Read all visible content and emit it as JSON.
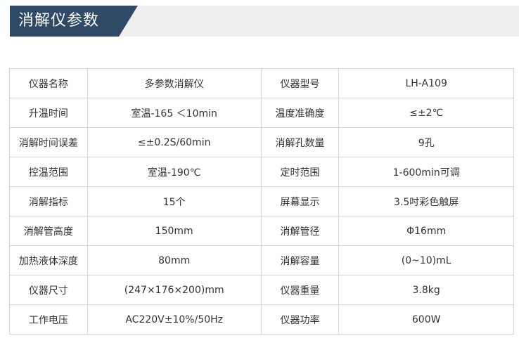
{
  "header": {
    "title": "消解仪参数",
    "accent_color": "#2e4a66",
    "band_color": "#efefef"
  },
  "specs": [
    {
      "label1": "仪器名称",
      "value1": "多参数消解仪",
      "label2": "仪器型号",
      "value2": "LH-A109"
    },
    {
      "label1": "升温时间",
      "value1": "室温-165 ＜10min",
      "label2": "温度准确度",
      "value2": "≤±2℃"
    },
    {
      "label1": "消解时间误差",
      "value1": "≤±0.2S/60min",
      "label2": "消解孔数量",
      "value2": "9孔"
    },
    {
      "label1": "控温范围",
      "value1": "室温-190℃",
      "label2": "定时范围",
      "value2": "1-600min可调"
    },
    {
      "label1": "消解指标",
      "value1": "15个",
      "label2": "屏幕显示",
      "value2": "3.5吋彩色触屏"
    },
    {
      "label1": "消解管高度",
      "value1": "150mm",
      "label2": "消解管径",
      "value2": "Φ16mm"
    },
    {
      "label1": "加热液体深度",
      "value1": "80mm",
      "label2": "消解容量",
      "value2": "(0~10)mL"
    },
    {
      "label1": "仪器尺寸",
      "value1": "(247×176×200)mm",
      "label2": "仪器重量",
      "value2": "3.8kg"
    },
    {
      "label1": "工作电压",
      "value1": "AC220V±10%/50Hz",
      "label2": "仪器功率",
      "value2": "600W"
    }
  ]
}
